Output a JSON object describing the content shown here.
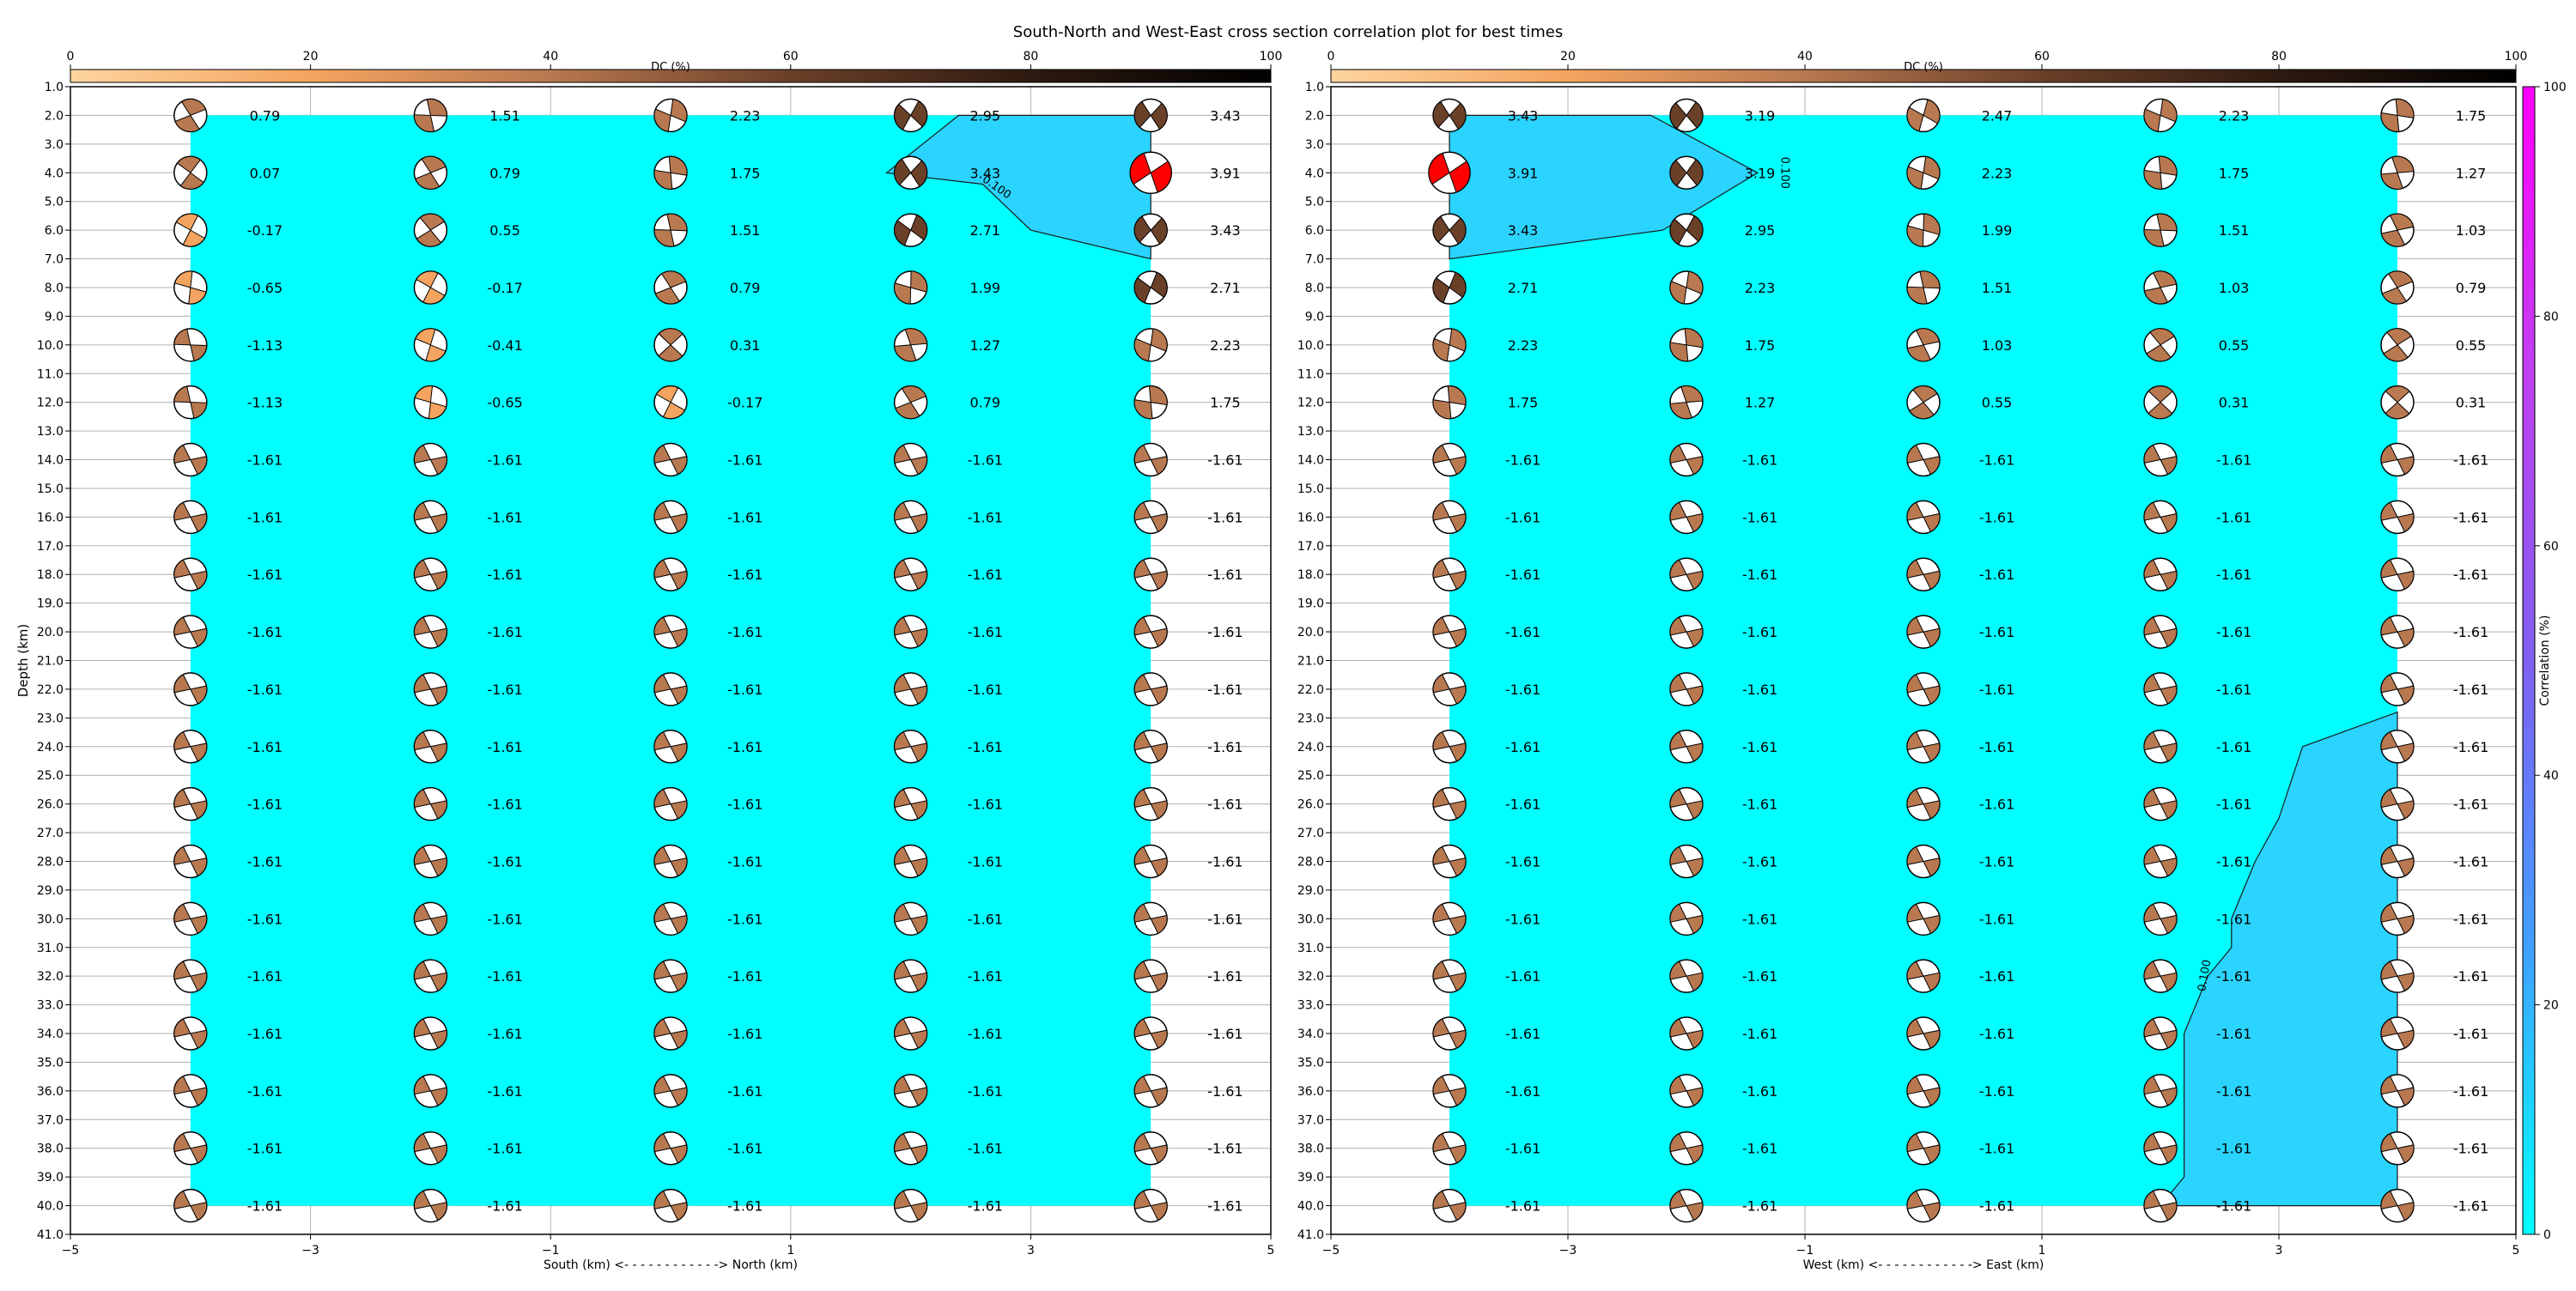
{
  "title": "South-North and West-East cross section correlation plot for best times",
  "dc_colorbar": {
    "label": "DC (%)",
    "ticks": [
      "0",
      "20",
      "40",
      "60",
      "80",
      "100"
    ],
    "colors": [
      "#fdd49e",
      "#f4a460",
      "#b87850",
      "#6b4028",
      "#2e1a10",
      "#000000"
    ]
  },
  "corr_colorbar": {
    "label": "Correlation (%)",
    "ticks": [
      "0",
      "20",
      "40",
      "60",
      "80",
      "100"
    ],
    "colors": [
      "#00ffff",
      "#40a0ff",
      "#8060f0",
      "#c040f0",
      "#ff00ff"
    ]
  },
  "y_axis": {
    "label": "Depth (km)",
    "ticks": [
      "1.0",
      "2.0",
      "3.0",
      "4.0",
      "5.0",
      "6.0",
      "7.0",
      "8.0",
      "9.0",
      "10.0",
      "11.0",
      "12.0",
      "13.0",
      "14.0",
      "15.0",
      "16.0",
      "17.0",
      "18.0",
      "19.0",
      "20.0",
      "21.0",
      "22.0",
      "23.0",
      "24.0",
      "25.0",
      "26.0",
      "27.0",
      "28.0",
      "29.0",
      "30.0",
      "31.0",
      "32.0",
      "33.0",
      "34.0",
      "35.0",
      "36.0",
      "37.0",
      "38.0",
      "39.0",
      "40.0",
      "41.0"
    ],
    "range": [
      1,
      41
    ],
    "inverted": true
  },
  "x_axis": {
    "ticks": [
      "−5",
      "−3",
      "−1",
      "1",
      "3",
      "5"
    ],
    "range": [
      -5,
      5
    ]
  },
  "chart_data": [
    {
      "type": "heatmap",
      "panel": "South-North",
      "xlabel": "South (km) <- - - - - - - - - - - -> North (km)",
      "x": [
        -4,
        -2,
        0,
        2,
        4
      ],
      "depths": [
        2,
        4,
        6,
        8,
        10,
        12,
        14,
        16,
        18,
        20,
        22,
        24,
        26,
        28,
        30,
        32,
        34,
        36,
        38,
        40
      ],
      "fill_extent": {
        "x": [
          -4,
          4
        ],
        "depth": [
          2,
          40
        ]
      },
      "contour_level_label": "0.100",
      "contour_region": [
        [
          1.8,
          4.0
        ],
        [
          2.4,
          2.0
        ],
        [
          4.0,
          2.0
        ],
        [
          4.0,
          7.0
        ],
        [
          3.0,
          6.0
        ],
        [
          2.6,
          4.4
        ]
      ],
      "highlight_position": {
        "x": 4,
        "depth": 4
      },
      "values": [
        [
          0.79,
          1.51,
          2.23,
          2.95,
          3.43
        ],
        [
          0.07,
          0.79,
          1.75,
          3.43,
          3.91
        ],
        [
          -0.17,
          0.55,
          1.51,
          2.71,
          3.43
        ],
        [
          -0.65,
          -0.17,
          0.79,
          1.99,
          2.71
        ],
        [
          -1.13,
          -0.41,
          0.31,
          1.27,
          2.23
        ],
        [
          -1.13,
          -0.65,
          -0.17,
          0.79,
          1.75
        ],
        [
          -1.61,
          -1.61,
          -1.61,
          -1.61,
          -1.61
        ],
        [
          -1.61,
          -1.61,
          -1.61,
          -1.61,
          -1.61
        ],
        [
          -1.61,
          -1.61,
          -1.61,
          -1.61,
          -1.61
        ],
        [
          -1.61,
          -1.61,
          -1.61,
          -1.61,
          -1.61
        ],
        [
          -1.61,
          -1.61,
          -1.61,
          -1.61,
          -1.61
        ],
        [
          -1.61,
          -1.61,
          -1.61,
          -1.61,
          -1.61
        ],
        [
          -1.61,
          -1.61,
          -1.61,
          -1.61,
          -1.61
        ],
        [
          -1.61,
          -1.61,
          -1.61,
          -1.61,
          -1.61
        ],
        [
          -1.61,
          -1.61,
          -1.61,
          -1.61,
          -1.61
        ],
        [
          -1.61,
          -1.61,
          -1.61,
          -1.61,
          -1.61
        ],
        [
          -1.61,
          -1.61,
          -1.61,
          -1.61,
          -1.61
        ],
        [
          -1.61,
          -1.61,
          -1.61,
          -1.61,
          -1.61
        ],
        [
          -1.61,
          -1.61,
          -1.61,
          -1.61,
          -1.61
        ],
        [
          -1.61,
          -1.61,
          -1.61,
          -1.61,
          -1.61
        ]
      ]
    },
    {
      "type": "heatmap",
      "panel": "West-East",
      "xlabel": "West (km) <- - - - - - - - - - - -> East (km)",
      "x": [
        -4,
        -2,
        0,
        2,
        4
      ],
      "depths": [
        2,
        4,
        6,
        8,
        10,
        12,
        14,
        16,
        18,
        20,
        22,
        24,
        26,
        28,
        30,
        32,
        34,
        36,
        38,
        40
      ],
      "fill_extent": {
        "x": [
          -4,
          4
        ],
        "depth": [
          2,
          40
        ]
      },
      "contour_level_label": "0.100",
      "contour_region": [
        [
          -4.0,
          2.0
        ],
        [
          -2.3,
          2.0
        ],
        [
          -1.4,
          4.0
        ],
        [
          -2.2,
          6.0
        ],
        [
          -4.0,
          7.0
        ]
      ],
      "contour_region_2": [
        [
          4.0,
          22.8
        ],
        [
          3.2,
          24.0
        ],
        [
          3.0,
          26.5
        ],
        [
          2.8,
          28.0
        ],
        [
          2.6,
          30.0
        ],
        [
          2.6,
          31.0
        ],
        [
          2.4,
          32.0
        ],
        [
          2.2,
          34.0
        ],
        [
          2.2,
          36.0
        ],
        [
          2.2,
          38.0
        ],
        [
          2.2,
          39.0
        ],
        [
          2.0,
          40.0
        ],
        [
          4.0,
          40.0
        ]
      ],
      "highlight_position": {
        "x": -4,
        "depth": 4
      },
      "values": [
        [
          3.43,
          3.19,
          2.47,
          2.23,
          1.75
        ],
        [
          3.91,
          3.19,
          2.23,
          1.75,
          1.27
        ],
        [
          3.43,
          2.95,
          1.99,
          1.51,
          1.03
        ],
        [
          2.71,
          2.23,
          1.51,
          1.03,
          0.79
        ],
        [
          2.23,
          1.75,
          1.03,
          0.55,
          0.55
        ],
        [
          1.75,
          1.27,
          0.55,
          0.31,
          0.31
        ],
        [
          -1.61,
          -1.61,
          -1.61,
          -1.61,
          -1.61
        ],
        [
          -1.61,
          -1.61,
          -1.61,
          -1.61,
          -1.61
        ],
        [
          -1.61,
          -1.61,
          -1.61,
          -1.61,
          -1.61
        ],
        [
          -1.61,
          -1.61,
          -1.61,
          -1.61,
          -1.61
        ],
        [
          -1.61,
          -1.61,
          -1.61,
          -1.61,
          -1.61
        ],
        [
          -1.61,
          -1.61,
          -1.61,
          -1.61,
          -1.61
        ],
        [
          -1.61,
          -1.61,
          -1.61,
          -1.61,
          -1.61
        ],
        [
          -1.61,
          -1.61,
          -1.61,
          -1.61,
          -1.61
        ],
        [
          -1.61,
          -1.61,
          -1.61,
          -1.61,
          -1.61
        ],
        [
          -1.61,
          -1.61,
          -1.61,
          -1.61,
          -1.61
        ],
        [
          -1.61,
          -1.61,
          -1.61,
          -1.61,
          -1.61
        ],
        [
          -1.61,
          -1.61,
          -1.61,
          -1.61,
          -1.61
        ],
        [
          -1.61,
          -1.61,
          -1.61,
          -1.61,
          -1.61
        ],
        [
          -1.61,
          -1.61,
          -1.61,
          -1.61,
          -1.61
        ]
      ]
    }
  ]
}
